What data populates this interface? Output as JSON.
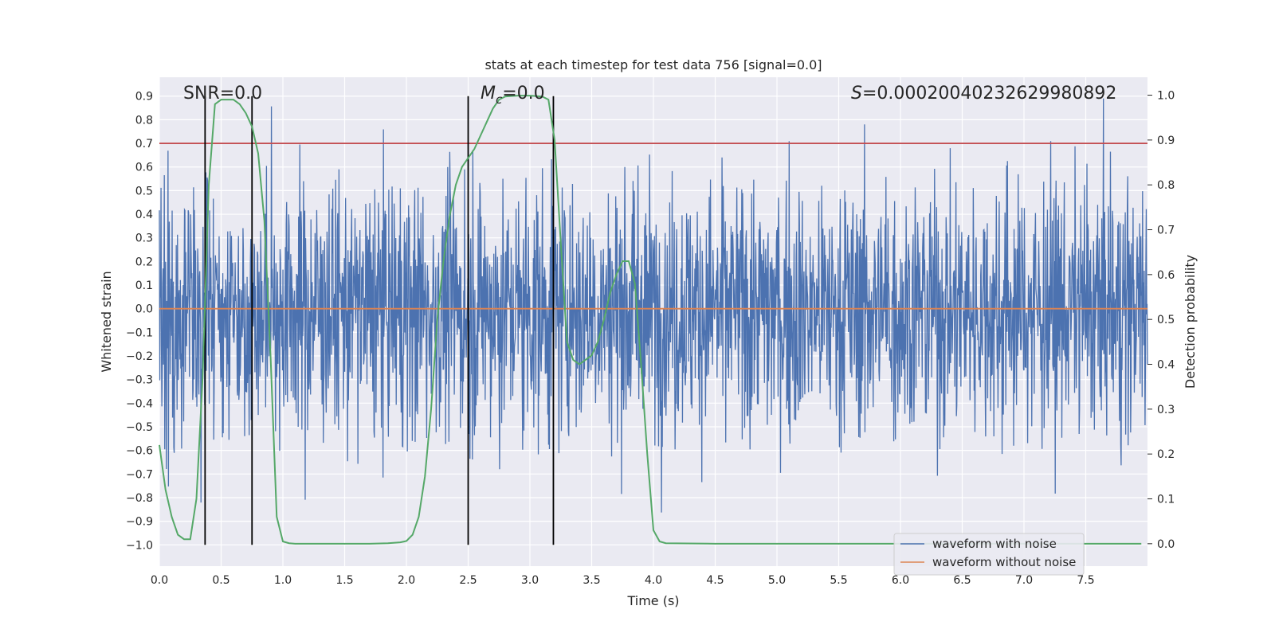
{
  "chart_data": {
    "type": "line",
    "title": "stats at each timestep for test data 756 [signal=0.0]",
    "xlabel": "Time (s)",
    "ylabel_left": "Whitened strain",
    "ylabel_right": "Detection probability",
    "xlim": [
      0.0,
      8.0
    ],
    "ylim_left": [
      -1.09,
      0.98
    ],
    "ylim_right": [
      -0.05,
      1.04
    ],
    "x_ticks": [
      "0.0",
      "0.5",
      "1.0",
      "1.5",
      "2.0",
      "2.5",
      "3.0",
      "3.5",
      "4.0",
      "4.5",
      "5.0",
      "5.5",
      "6.0",
      "6.5",
      "7.0",
      "7.5"
    ],
    "y_ticks_left": [
      "0.9",
      "0.8",
      "0.7",
      "0.6",
      "0.5",
      "0.4",
      "0.3",
      "0.2",
      "0.1",
      "0.0",
      "−0.1",
      "−0.2",
      "−0.3",
      "−0.4",
      "−0.5",
      "−0.6",
      "−0.7",
      "−0.8",
      "−0.9",
      "−1.0"
    ],
    "y_ticks_right": [
      "1.0",
      "0.9",
      "0.8",
      "0.7",
      "0.6",
      "0.5",
      "0.4",
      "0.3",
      "0.2",
      "0.1",
      "0.0"
    ],
    "threshold": 0.7,
    "vertical_lines": [
      0.37,
      0.75,
      2.5,
      3.19
    ],
    "annotations": {
      "snr": "SNR=0.0",
      "mc_symbol": "M",
      "mc_subscript": "c",
      "mc_value": "=0.0",
      "s_symbol": "S",
      "s_value": "=0.00020040232629980892"
    },
    "series": [
      {
        "name": "waveform with noise",
        "color": "#4c72b0",
        "axis": "left",
        "description_range": [
          -1.0,
          0.89
        ]
      },
      {
        "name": "waveform without noise",
        "color": "#dd8452",
        "axis": "left",
        "x": [
          0.0,
          8.0
        ],
        "y": [
          0.0,
          0.0
        ]
      },
      {
        "name": "detection probability",
        "color": "#55a868",
        "axis": "right",
        "x": [
          0.0,
          0.05,
          0.1,
          0.15,
          0.2,
          0.25,
          0.3,
          0.35,
          0.4,
          0.45,
          0.5,
          0.55,
          0.6,
          0.65,
          0.7,
          0.75,
          0.8,
          0.85,
          0.9,
          0.95,
          1.0,
          1.05,
          1.1,
          1.3,
          1.5,
          1.7,
          1.85,
          1.95,
          2.0,
          2.05,
          2.1,
          2.15,
          2.2,
          2.25,
          2.3,
          2.35,
          2.4,
          2.45,
          2.5,
          2.55,
          2.6,
          2.65,
          2.7,
          2.75,
          2.8,
          2.9,
          3.0,
          3.1,
          3.15,
          3.2,
          3.25,
          3.3,
          3.35,
          3.4,
          3.45,
          3.5,
          3.55,
          3.6,
          3.65,
          3.7,
          3.75,
          3.8,
          3.85,
          3.9,
          3.95,
          4.0,
          4.05,
          4.1,
          4.5,
          5.0,
          6.0,
          7.0,
          7.95
        ],
        "y": [
          0.22,
          0.12,
          0.06,
          0.02,
          0.01,
          0.01,
          0.1,
          0.37,
          0.8,
          0.98,
          0.99,
          0.99,
          0.99,
          0.98,
          0.96,
          0.93,
          0.87,
          0.72,
          0.42,
          0.06,
          0.005,
          0.001,
          0.0,
          0.0,
          0.0,
          0.0,
          0.001,
          0.003,
          0.006,
          0.02,
          0.06,
          0.15,
          0.3,
          0.5,
          0.63,
          0.73,
          0.8,
          0.84,
          0.86,
          0.88,
          0.91,
          0.94,
          0.97,
          0.99,
          0.997,
          0.999,
          0.999,
          0.997,
          0.99,
          0.9,
          0.67,
          0.45,
          0.41,
          0.4,
          0.41,
          0.42,
          0.45,
          0.5,
          0.56,
          0.6,
          0.63,
          0.63,
          0.58,
          0.4,
          0.2,
          0.03,
          0.005,
          0.001,
          0.0,
          0.0,
          0.0,
          0.0,
          0.0
        ]
      }
    ],
    "legend": [
      "waveform with noise",
      "waveform without noise"
    ],
    "legend_position": "lower-right",
    "grid": true,
    "colors": {
      "background": "#eaeaf2",
      "grid": "#ffffff",
      "noise": "#4c72b0",
      "clean": "#dd8452",
      "probability": "#55a868",
      "threshold": "#c44e52",
      "vline": "#000000"
    }
  }
}
